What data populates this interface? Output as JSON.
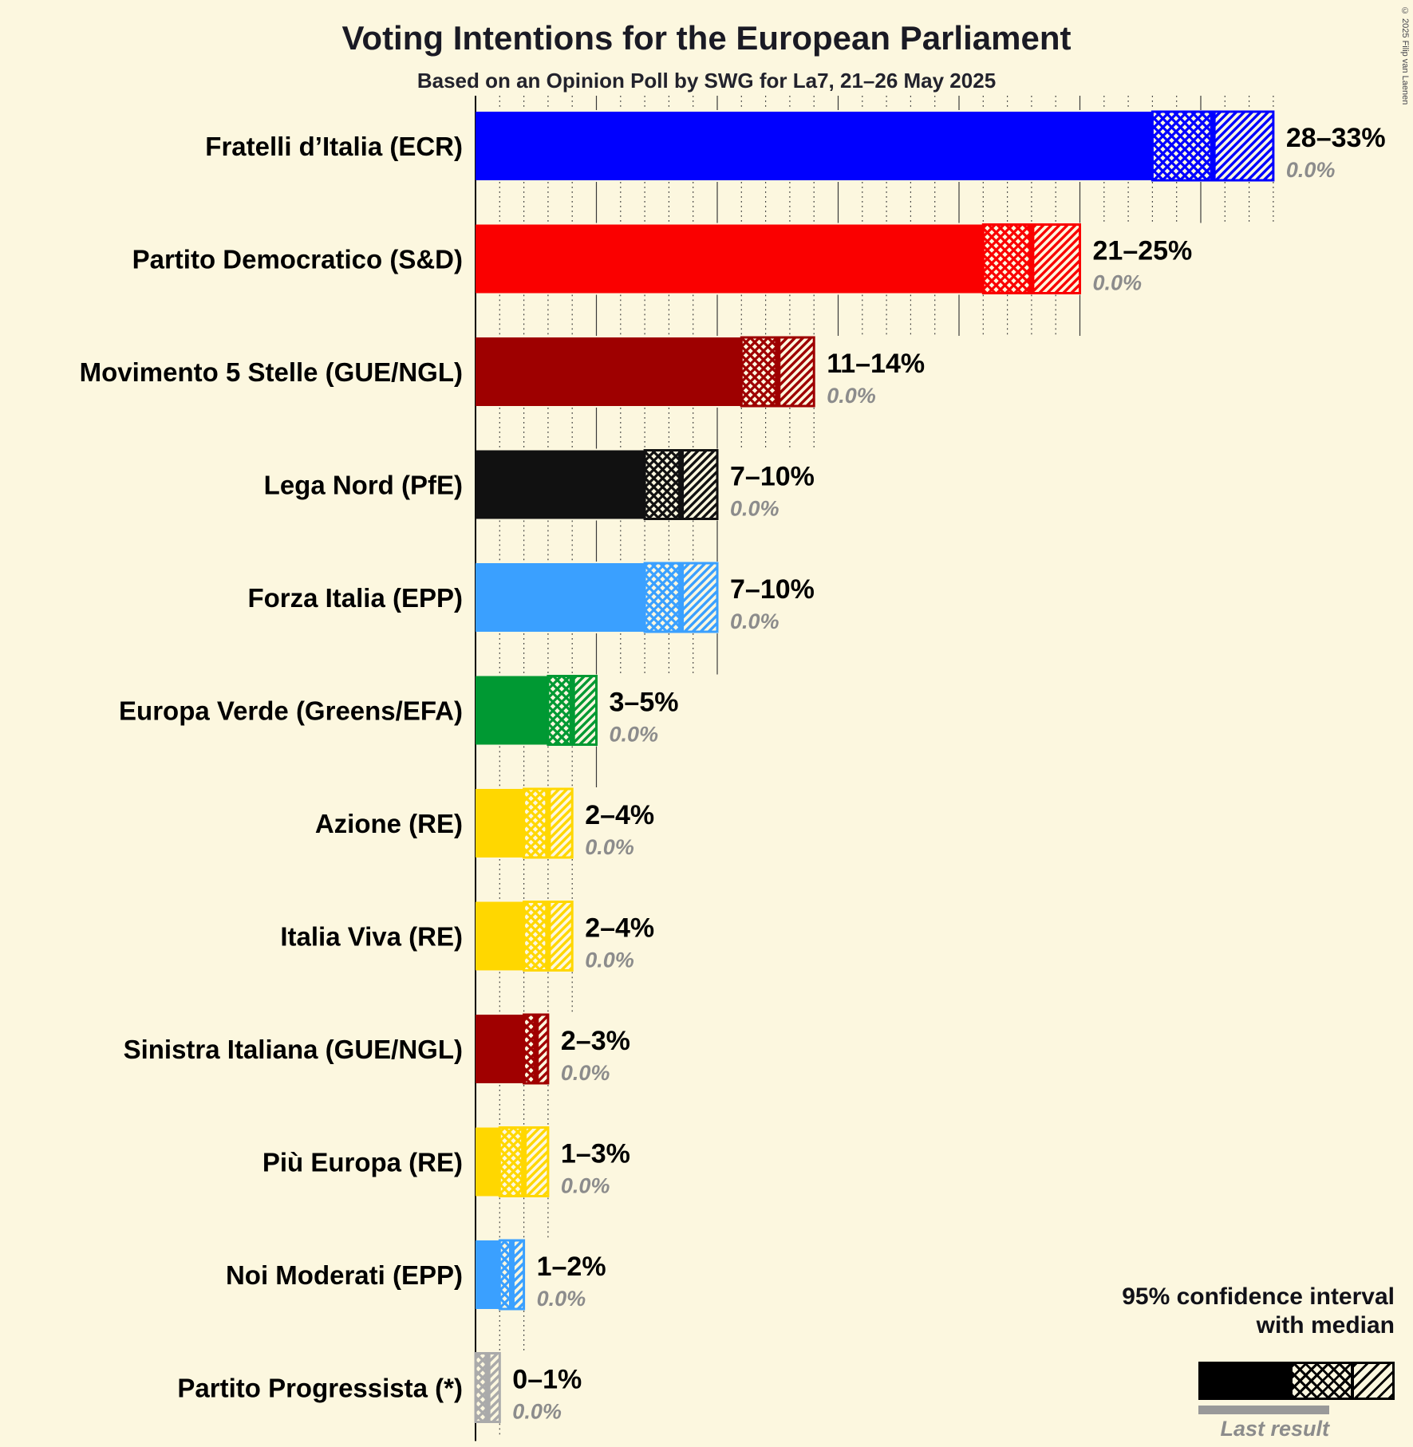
{
  "page": {
    "background": "#fcf7df"
  },
  "header": {
    "title": "Voting Intentions for the European Parliament",
    "subtitle": "Based on an Opinion Poll by SWG for La7, 21–26 May 2025"
  },
  "copyright": "© 2025 Filip van Laenen",
  "legend": {
    "ci_line1": "95% confidence interval",
    "ci_line2": "with median",
    "last_result": "Last result"
  },
  "chart_data": {
    "type": "bar",
    "orientation": "horizontal",
    "unit": "percent",
    "axis": {
      "min": 0,
      "max": 33,
      "minor_step": 1,
      "major_step": 5
    },
    "note": "Bars show 95% confidence intervals: solid fill up to lower bound, crosshatch from lower bound to median, diagonal hatch from median to upper bound. Gray sub-bar would show last result (all 0.0%).",
    "parties": [
      {
        "label": "Fratelli d’Italia (ECR)",
        "ci_low": 28,
        "ci_high": 33,
        "median": 30.5,
        "range_label": "28–33%",
        "last_result": 0.0,
        "last_result_label": "0.0%",
        "color": "#0000ff"
      },
      {
        "label": "Partito Democratico (S&D)",
        "ci_low": 21,
        "ci_high": 25,
        "median": 23,
        "range_label": "21–25%",
        "last_result": 0.0,
        "last_result_label": "0.0%",
        "color": "#fa0000"
      },
      {
        "label": "Movimento 5 Stelle (GUE/NGL)",
        "ci_low": 11,
        "ci_high": 14,
        "median": 12.5,
        "range_label": "11–14%",
        "last_result": 0.0,
        "last_result_label": "0.0%",
        "color": "#9e0000"
      },
      {
        "label": "Lega Nord (PfE)",
        "ci_low": 7,
        "ci_high": 10,
        "median": 8.5,
        "range_label": "7–10%",
        "last_result": 0.0,
        "last_result_label": "0.0%",
        "color": "#111111"
      },
      {
        "label": "Forza Italia (EPP)",
        "ci_low": 7,
        "ci_high": 10,
        "median": 8.5,
        "range_label": "7–10%",
        "last_result": 0.0,
        "last_result_label": "0.0%",
        "color": "#3aa0ff"
      },
      {
        "label": "Europa Verde (Greens/EFA)",
        "ci_low": 3,
        "ci_high": 5,
        "median": 4,
        "range_label": "3–5%",
        "last_result": 0.0,
        "last_result_label": "0.0%",
        "color": "#009933"
      },
      {
        "label": "Azione (RE)",
        "ci_low": 2,
        "ci_high": 4,
        "median": 3,
        "range_label": "2–4%",
        "last_result": 0.0,
        "last_result_label": "0.0%",
        "color": "#ffd700"
      },
      {
        "label": "Italia Viva (RE)",
        "ci_low": 2,
        "ci_high": 4,
        "median": 3,
        "range_label": "2–4%",
        "last_result": 0.0,
        "last_result_label": "0.0%",
        "color": "#ffd700"
      },
      {
        "label": "Sinistra Italiana (GUE/NGL)",
        "ci_low": 2,
        "ci_high": 3,
        "median": 2.5,
        "range_label": "2–3%",
        "last_result": 0.0,
        "last_result_label": "0.0%",
        "color": "#a00000"
      },
      {
        "label": "Più Europa (RE)",
        "ci_low": 1,
        "ci_high": 3,
        "median": 2,
        "range_label": "1–3%",
        "last_result": 0.0,
        "last_result_label": "0.0%",
        "color": "#ffd700"
      },
      {
        "label": "Noi Moderati (EPP)",
        "ci_low": 1,
        "ci_high": 2,
        "median": 1.5,
        "range_label": "1–2%",
        "last_result": 0.0,
        "last_result_label": "0.0%",
        "color": "#3aa0ff"
      },
      {
        "label": "Partito Progressista (*)",
        "ci_low": 0,
        "ci_high": 1,
        "median": 0.5,
        "range_label": "0–1%",
        "last_result": 0.0,
        "last_result_label": "0.0%",
        "color": "#aaaaaa"
      }
    ]
  }
}
